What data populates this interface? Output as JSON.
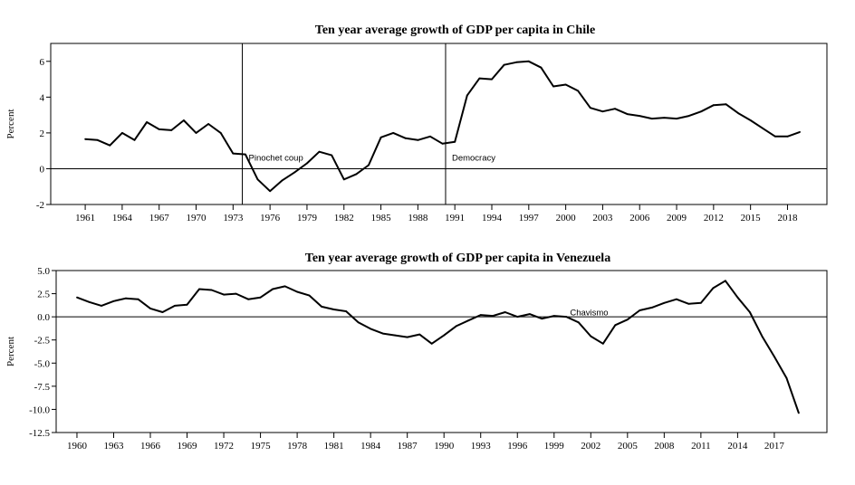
{
  "chart_data": [
    {
      "type": "line",
      "title": "Ten year average growth of GDP per capita in Chile",
      "ylabel": "Percent",
      "xlabel": "",
      "xlim": [
        1958.2,
        2021.2
      ],
      "ylim": [
        -2,
        7
      ],
      "yticks": [
        -2,
        0,
        2,
        4,
        6
      ],
      "ytick_labels": [
        "-2",
        "0",
        "2",
        "4",
        "6"
      ],
      "xticks": [
        1961,
        1964,
        1967,
        1970,
        1973,
        1976,
        1979,
        1982,
        1985,
        1988,
        1991,
        1994,
        1997,
        2000,
        2003,
        2006,
        2009,
        2012,
        2015,
        2018
      ],
      "zero_line": true,
      "vlines": [
        {
          "x": 1973.75,
          "label": "Pinochet coup"
        },
        {
          "x": 1990.25,
          "label": "Democracy"
        }
      ],
      "series": [
        {
          "x": [
            1961,
            1962,
            1963,
            1964,
            1965,
            1966,
            1967,
            1968,
            1969,
            1970,
            1971,
            1972,
            1973,
            1974,
            1975,
            1976,
            1977,
            1978,
            1979,
            1980,
            1981,
            1982,
            1983,
            1984,
            1985,
            1986,
            1987,
            1988,
            1989,
            1990,
            1991,
            1992,
            1993,
            1994,
            1995,
            1996,
            1997,
            1998,
            1999,
            2000,
            2001,
            2002,
            2003,
            2004,
            2005,
            2006,
            2007,
            2008,
            2009,
            2010,
            2011,
            2012,
            2013,
            2014,
            2015,
            2016,
            2017,
            2018,
            2019
          ],
          "values": [
            1.65,
            1.6,
            1.3,
            2.0,
            1.6,
            2.6,
            2.2,
            2.15,
            2.7,
            2.0,
            2.5,
            2.0,
            0.85,
            0.8,
            -0.6,
            -1.25,
            -0.65,
            -0.2,
            0.3,
            0.95,
            0.75,
            -0.6,
            -0.3,
            0.2,
            1.75,
            2.0,
            1.7,
            1.6,
            1.8,
            1.4,
            1.5,
            4.1,
            5.05,
            5.0,
            5.8,
            5.95,
            6.0,
            5.65,
            4.6,
            4.7,
            4.35,
            3.4,
            3.2,
            3.35,
            3.05,
            2.95,
            2.8,
            2.85,
            2.8,
            2.95,
            3.2,
            3.55,
            3.6,
            3.1,
            2.7,
            2.25,
            1.8,
            1.8,
            2.05
          ]
        }
      ]
    },
    {
      "type": "line",
      "title": "Ten year average growth of GDP per capita in Venezuela",
      "ylabel": "Percent",
      "xlabel": "",
      "xlim": [
        1958.3,
        2021.3
      ],
      "ylim": [
        -12.5,
        5.0
      ],
      "yticks": [
        -12.5,
        -10.0,
        -7.5,
        -5.0,
        -2.5,
        0.0,
        2.5,
        5.0
      ],
      "ytick_labels": [
        "-12.5",
        "-10.0",
        "-7.5",
        "-5.0",
        "-2.5",
        "0.0",
        "2.5",
        "5.0"
      ],
      "xticks": [
        1960,
        1963,
        1966,
        1969,
        1972,
        1975,
        1978,
        1981,
        1984,
        1987,
        1990,
        1993,
        1996,
        1999,
        2002,
        2005,
        2008,
        2011,
        2014,
        2017
      ],
      "zero_line": true,
      "annotations": [
        {
          "x": 2000.3,
          "y": 0.55,
          "label": "Chavismo"
        }
      ],
      "series": [
        {
          "x": [
            1960,
            1961,
            1962,
            1963,
            1964,
            1965,
            1966,
            1967,
            1968,
            1969,
            1970,
            1971,
            1972,
            1973,
            1974,
            1975,
            1976,
            1977,
            1978,
            1979,
            1980,
            1981,
            1982,
            1983,
            1984,
            1985,
            1986,
            1987,
            1988,
            1989,
            1990,
            1991,
            1992,
            1993,
            1994,
            1995,
            1996,
            1997,
            1998,
            1999,
            2000,
            2001,
            2002,
            2003,
            2004,
            2005,
            2006,
            2007,
            2008,
            2009,
            2010,
            2011,
            2012,
            2013,
            2014,
            2015,
            2016,
            2017,
            2018,
            2019
          ],
          "values": [
            2.1,
            1.6,
            1.2,
            1.7,
            2.0,
            1.9,
            0.9,
            0.5,
            1.2,
            1.3,
            3.0,
            2.9,
            2.4,
            2.5,
            1.9,
            2.1,
            3.0,
            3.3,
            2.7,
            2.3,
            1.1,
            0.8,
            0.6,
            -0.6,
            -1.3,
            -1.8,
            -2.0,
            -2.2,
            -1.9,
            -2.9,
            -2.0,
            -1.0,
            -0.4,
            0.2,
            0.1,
            0.5,
            0.0,
            0.3,
            -0.2,
            0.1,
            0.0,
            -0.6,
            -2.1,
            -2.9,
            -0.9,
            -0.3,
            0.7,
            1.0,
            1.5,
            1.9,
            1.4,
            1.5,
            3.1,
            3.9,
            2.1,
            0.5,
            -2.1,
            -4.3,
            -6.6,
            -10.4
          ]
        }
      ]
    }
  ]
}
